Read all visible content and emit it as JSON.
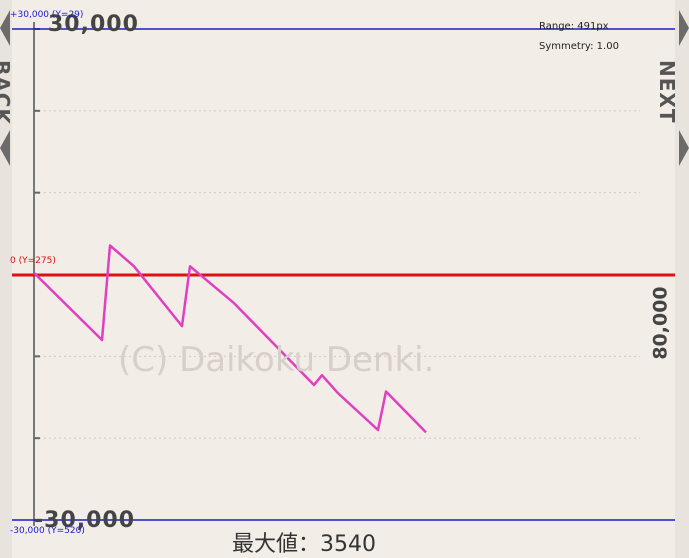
{
  "nav": {
    "back_label": "BACK",
    "next_label": "NEXT"
  },
  "info": {
    "range": "Range: 491px",
    "symmetry": "Symmetry: 1.00"
  },
  "reference_lines": {
    "top": "+30,000 (Y=29)",
    "zero": "0 (Y=275)",
    "bottom": "-30,000 (Y=520)"
  },
  "chart_data": {
    "type": "line",
    "ylim": [
      -30000,
      30000
    ],
    "y_tick_labels": [
      "30,000",
      "-30,000"
    ],
    "y_ticks": [
      30000,
      20000,
      10000,
      0,
      -10000,
      -20000,
      -30000
    ],
    "grid": true,
    "max_label": "最大値：3540",
    "side_value": "80,000",
    "watermark": "(C) Daikoku Denki.",
    "series": [
      {
        "color": "#e040c0",
        "x": [
          0,
          0.17,
          0.19,
          0.25,
          0.37,
          0.39,
          0.5,
          0.7,
          0.72,
          0.76,
          0.86,
          0.88,
          0.98
        ],
        "y": [
          200,
          -8000,
          3540,
          1000,
          -6300,
          1000,
          -3500,
          -13500,
          -12300,
          -14500,
          -19000,
          -14300,
          -19300
        ]
      }
    ]
  }
}
